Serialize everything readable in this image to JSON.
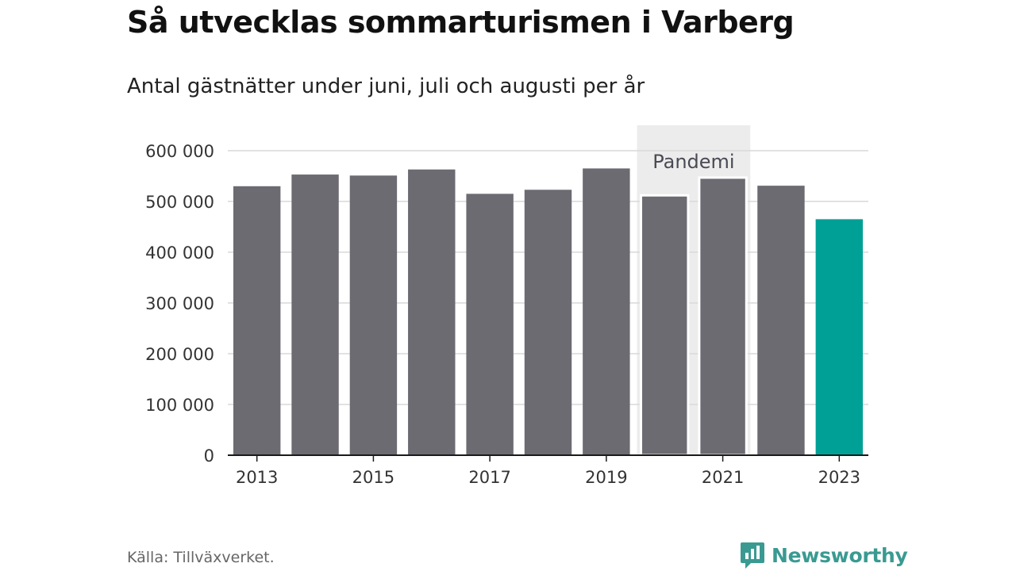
{
  "title": "Så utvecklas sommarturismen i Varberg",
  "subtitle": "Antal gästnätter under juni, juli och augusti per år",
  "source": "Källa: Tillväxverket.",
  "brand": "Newsworthy",
  "colors": {
    "bar": "#6c6b72",
    "highlight": "#00a096",
    "annotation_bg": "#ececec",
    "grid": "#d9d9d9",
    "axis": "#1a1a1a",
    "brand": "#3a9a92"
  },
  "chart_data": {
    "type": "bar",
    "title": "Så utvecklas sommarturismen i Varberg",
    "subtitle": "Antal gästnätter under juni, juli och augusti per år",
    "categories": [
      "2013",
      "2014",
      "2015",
      "2016",
      "2017",
      "2018",
      "2019",
      "2020",
      "2021",
      "2022",
      "2023"
    ],
    "values": [
      530000,
      553000,
      551000,
      563000,
      515000,
      523000,
      565000,
      512000,
      547000,
      531000,
      465000
    ],
    "highlight": "2023",
    "x_tick_labels": [
      "2013",
      "2015",
      "2017",
      "2019",
      "2021",
      "2023"
    ],
    "ylim": [
      0,
      600000
    ],
    "y_ticks": [
      0,
      100000,
      200000,
      300000,
      400000,
      500000,
      600000
    ],
    "y_tick_labels": [
      "0",
      "100 000",
      "200 000",
      "300 000",
      "400 000",
      "500 000",
      "600 000"
    ],
    "xlabel": "",
    "ylabel": "",
    "grid": true,
    "annotation": {
      "label": "Pandemi",
      "from": "2020",
      "to": "2021"
    }
  }
}
